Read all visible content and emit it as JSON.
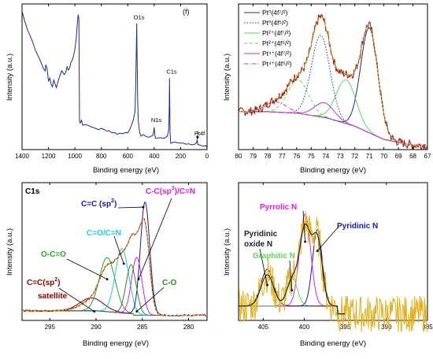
{
  "colors": {
    "axis": "#000000",
    "survey_line": "#1f2a8c",
    "raw_data": "#8a1a12",
    "fit_envelope": "#e0b020",
    "background": "#9b2fbf",
    "pt0": "#1f2a8c",
    "pt2": "#5fd75f",
    "pt4": "#c03ac0",
    "c1": "#8b0000",
    "c2": "#2ca02c",
    "c3": "#1ec8e0",
    "c4": "#1a1aa8",
    "c5": "#e020e0",
    "c6": "#2a8a2a",
    "n_pyridinic": "#1a1aa8",
    "n_pyrrolic": "#e020e0",
    "n_graphitic": "#5fd75f",
    "n_oxide": "#222222"
  },
  "chart_data": [
    {
      "type": "line",
      "panel": "survey",
      "title": "",
      "panel_letter": "(f)",
      "xlabel": "Binding energy (eV)",
      "ylabel": "Intensity (a.u.)",
      "xlim": [
        1400,
        0
      ],
      "x_reversed": true,
      "xticks": [
        1400,
        1200,
        1000,
        800,
        600,
        400,
        200,
        0
      ],
      "ylim": [
        0,
        1
      ],
      "series": [
        {
          "x": [
            1400,
            1380,
            1360,
            1340,
            1320,
            1300,
            1280,
            1260,
            1240,
            1225,
            1220,
            1210,
            1200,
            1190,
            1180,
            1170,
            1160,
            1140,
            1120,
            1100,
            1080,
            1070,
            1060,
            1050,
            1040,
            1030,
            1020,
            1010,
            1000,
            990,
            980,
            975,
            970,
            965,
            960,
            950,
            940,
            920,
            900,
            880,
            860,
            840,
            820,
            800,
            780,
            760,
            740,
            720,
            700,
            680,
            660,
            640,
            620,
            600,
            580,
            560,
            545,
            540,
            535,
            532,
            530,
            525,
            520,
            510,
            500,
            480,
            460,
            440,
            420,
            410,
            405,
            400,
            398,
            395,
            390,
            380,
            360,
            340,
            320,
            300,
            290,
            286,
            284,
            282,
            280,
            275,
            270,
            260,
            240,
            220,
            200,
            180,
            160,
            140,
            120,
            100,
            90,
            80,
            75,
            72,
            70,
            60,
            50,
            40,
            30,
            20,
            10,
            0
          ],
          "y": [
            0.97,
            0.9,
            0.84,
            0.8,
            0.76,
            0.7,
            0.66,
            0.62,
            0.57,
            0.55,
            0.6,
            0.56,
            0.48,
            0.5,
            0.46,
            0.44,
            0.49,
            0.43,
            0.5,
            0.55,
            0.53,
            0.54,
            0.58,
            0.56,
            0.57,
            0.61,
            0.63,
            0.66,
            0.7,
            0.78,
            0.9,
            0.95,
            0.92,
            0.2,
            0.18,
            0.2,
            0.17,
            0.18,
            0.17,
            0.16,
            0.15,
            0.15,
            0.14,
            0.15,
            0.14,
            0.13,
            0.13,
            0.12,
            0.12,
            0.11,
            0.11,
            0.11,
            0.12,
            0.12,
            0.15,
            0.2,
            0.27,
            0.45,
            0.72,
            0.88,
            0.7,
            0.35,
            0.2,
            0.12,
            0.1,
            0.1,
            0.09,
            0.09,
            0.09,
            0.1,
            0.12,
            0.16,
            0.13,
            0.1,
            0.08,
            0.08,
            0.08,
            0.08,
            0.08,
            0.1,
            0.14,
            0.3,
            0.5,
            0.3,
            0.12,
            0.05,
            0.045,
            0.05,
            0.05,
            0.045,
            0.045,
            0.04,
            0.04,
            0.04,
            0.035,
            0.035,
            0.04,
            0.05,
            0.065,
            0.05,
            0.035,
            0.035,
            0.03,
            0.03,
            0.028,
            0.025,
            0.025,
            0.02
          ]
        }
      ],
      "annotations": [
        {
          "text": "O1s",
          "x": 532,
          "y": 0.88
        },
        {
          "text": "N1s",
          "x": 400,
          "y": 0.16
        },
        {
          "text": "C1s",
          "x": 284,
          "y": 0.5
        },
        {
          "text": "Pt4f",
          "x": 72,
          "y": 0.065
        }
      ]
    },
    {
      "type": "line",
      "panel": "Pt 4f",
      "title": "",
      "xlabel": "Binding energy (eV)",
      "ylabel": "Intensity (a.u.)",
      "xlim": [
        80,
        67
      ],
      "x_reversed": true,
      "xticks": [
        80,
        79,
        78,
        77,
        76,
        75,
        74,
        73,
        72,
        71,
        70,
        69,
        68,
        67
      ],
      "ylim": [
        0,
        1
      ],
      "legend_position": "top-left",
      "series": [
        {
          "name": "Pt⁰(4f⁷/²)",
          "style": "solid",
          "color_key": "pt0",
          "center": 71.0,
          "height": 0.72,
          "fwhm": 1.4
        },
        {
          "name": "Pt⁰(4f⁵/²)",
          "style": "dotted",
          "color_key": "pt0",
          "center": 74.35,
          "height": 0.56,
          "fwhm": 1.5
        },
        {
          "name": "Pt²⁺(4f⁷/²)",
          "style": "solid",
          "color_key": "pt2",
          "center": 72.6,
          "height": 0.3,
          "fwhm": 1.6
        },
        {
          "name": "Pt²⁺(4f⁵/²)",
          "style": "dashed",
          "color_key": "pt2",
          "center": 75.9,
          "height": 0.23,
          "fwhm": 1.7
        },
        {
          "name": "Pt⁴⁺(4f⁷/²)",
          "style": "solid",
          "color_key": "pt4",
          "center": 74.1,
          "height": 0.1,
          "fwhm": 1.6
        },
        {
          "name": "Pt⁴⁺(4f⁵/²)",
          "style": "dashdot",
          "color_key": "pt4",
          "center": 77.4,
          "height": 0.07,
          "fwhm": 1.7
        }
      ],
      "background": {
        "x": [
          80,
          78,
          76,
          74,
          72,
          70,
          68,
          67
        ],
        "y": [
          0.26,
          0.26,
          0.25,
          0.22,
          0.16,
          0.07,
          0.03,
          0.03
        ]
      }
    },
    {
      "type": "line",
      "panel": "C1s",
      "title": "C1s",
      "xlabel": "Binding energy (eV)",
      "ylabel": "Intensity (a.u.)",
      "xlim": [
        298,
        278
      ],
      "x_reversed": true,
      "xticks": [
        295,
        290,
        285,
        280
      ],
      "ylim": [
        0,
        1
      ],
      "series": [
        {
          "name": "C=C(sp²) satellite",
          "color_key": "c1",
          "center": 290.5,
          "height": 0.1,
          "fwhm": 3.0
        },
        {
          "name": "O-C=O",
          "color_key": "c2",
          "center": 288.8,
          "height": 0.42,
          "fwhm": 2.0
        },
        {
          "name": "C=O/C=N",
          "color_key": "c3",
          "center": 287.2,
          "height": 0.5,
          "fwhm": 1.7
        },
        {
          "name": "C=C (sp²)",
          "color_key": "c4",
          "center": 284.7,
          "height": 0.88,
          "fwhm": 1.2
        },
        {
          "name": "C-C(sp³)/C=N",
          "color_key": "c5",
          "center": 285.6,
          "height": 0.45,
          "fwhm": 1.3
        },
        {
          "name": "C-O",
          "color_key": "c6",
          "center": 286.2,
          "height": 0.38,
          "fwhm": 1.3
        }
      ],
      "labels": [
        "C=C (sp",
        "2",
        ")",
        "C-C(sp",
        "3",
        ")/C=N",
        "C=O/C=N",
        "O-C=O",
        "C=C(sp",
        "2",
        ")",
        "satellite",
        "C-O"
      ]
    },
    {
      "type": "line",
      "panel": "N1s",
      "title": "",
      "xlabel": "Binding energy (eV)",
      "ylabel": "Intensity (a.u.)",
      "xlim": [
        408,
        385
      ],
      "x_reversed": true,
      "xticks": [
        405,
        400,
        395,
        390,
        385
      ],
      "ylim": [
        0,
        1
      ],
      "series": [
        {
          "name": "Pyridinic N",
          "color_key": "n_pyridinic",
          "center": 398.4,
          "height": 0.58,
          "fwhm": 1.4
        },
        {
          "name": "Pyrrolic N",
          "color_key": "n_pyrrolic",
          "center": 399.9,
          "height": 0.7,
          "fwhm": 1.6
        },
        {
          "name": "Graphitic N",
          "color_key": "n_graphitic",
          "center": 401.5,
          "height": 0.22,
          "fwhm": 1.5
        },
        {
          "name": "Pyridinic oxide N",
          "color_key": "n_oxide",
          "center": 404.5,
          "height": 0.28,
          "fwhm": 1.8
        }
      ],
      "labels": [
        "Pyrrolic N",
        "Pyridinic N",
        "Pyridinic",
        "oxide N",
        "Graphitic N"
      ]
    }
  ]
}
